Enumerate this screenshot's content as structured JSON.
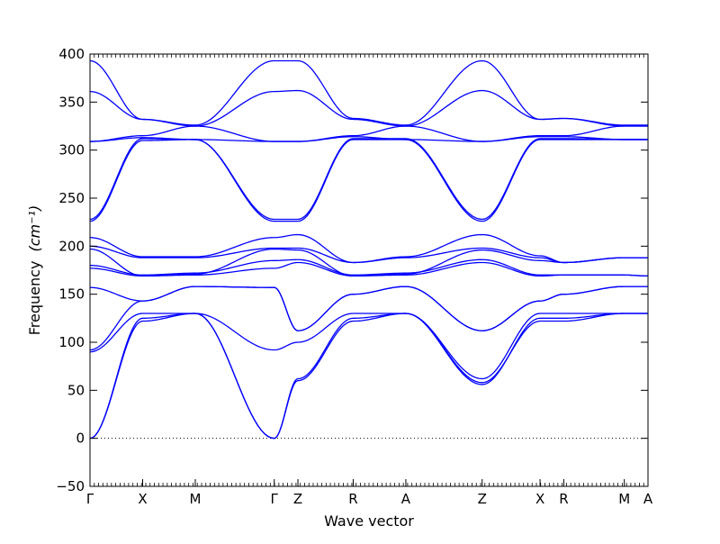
{
  "chart_data": {
    "type": "line",
    "title": "",
    "xlabel": "Wave vector",
    "ylabel": "Frequency",
    "ylabel_unit": "(cm⁻¹)",
    "ylim": [
      -50,
      400
    ],
    "yticks": [
      -50,
      0,
      50,
      100,
      150,
      200,
      250,
      300,
      350,
      400
    ],
    "xlim": [
      0,
      10.6
    ],
    "high_symmetry_points": [
      {
        "label": "Γ",
        "x": 0.0
      },
      {
        "label": "X",
        "x": 1.0
      },
      {
        "label": "M",
        "x": 2.0
      },
      {
        "label": "Γ",
        "x": 3.5
      },
      {
        "label": "Z",
        "x": 3.95
      },
      {
        "label": "R",
        "x": 5.0
      },
      {
        "label": "A",
        "x": 6.0
      },
      {
        "label": "Z",
        "x": 7.45
      },
      {
        "label": "X",
        "x": 8.55
      },
      {
        "label": "R",
        "x": 9.0
      },
      {
        "label": "M",
        "x": 10.15
      },
      {
        "label": "A",
        "x": 10.6
      }
    ],
    "zero_line": {
      "y": 0,
      "style": "dotted"
    },
    "line_color": "#0000ff",
    "grid": false,
    "band_x": [
      0,
      1,
      2,
      3.5,
      3.95,
      5,
      6,
      7.45,
      8.55,
      9,
      10.15,
      10.6
    ],
    "series": [
      {
        "values": [
          0,
          122,
          130,
          0,
          60,
          122,
          130,
          58,
          122,
          122,
          130,
          130
        ]
      },
      {
        "values": [
          0,
          125,
          130,
          0,
          62,
          125,
          130,
          56,
          125,
          125,
          130,
          130
        ]
      },
      {
        "values": [
          90,
          130,
          130,
          92,
          100,
          130,
          130,
          62,
          130,
          130,
          130,
          130
        ]
      },
      {
        "values": [
          92,
          143,
          158,
          157,
          112,
          150,
          158,
          112,
          143,
          150,
          158,
          158
        ]
      },
      {
        "values": [
          157,
          143,
          158,
          157,
          112,
          150,
          158,
          112,
          143,
          150,
          158,
          158
        ]
      },
      {
        "values": [
          177,
          169,
          170,
          177,
          183,
          169,
          170,
          183,
          169,
          170,
          170,
          169
        ]
      },
      {
        "values": [
          180,
          170,
          172,
          185,
          186,
          170,
          172,
          186,
          170,
          170,
          170,
          169
        ]
      },
      {
        "values": [
          197,
          169,
          171,
          197,
          196,
          169,
          171,
          196,
          185,
          183,
          188,
          188
        ]
      },
      {
        "values": [
          200,
          188,
          188,
          198,
          198,
          183,
          188,
          198,
          188,
          183,
          188,
          188
        ]
      },
      {
        "values": [
          209,
          189,
          189,
          209,
          212,
          183,
          189,
          212,
          190,
          183,
          188,
          188
        ]
      },
      {
        "values": [
          226,
          310,
          311,
          226,
          226,
          311,
          311,
          226,
          311,
          311,
          311,
          311
        ]
      },
      {
        "values": [
          228,
          312,
          311,
          228,
          228,
          312,
          312,
          228,
          312,
          312,
          311,
          311
        ]
      },
      {
        "values": [
          309,
          313,
          311,
          309,
          309,
          314,
          311,
          309,
          314,
          314,
          311,
          311
        ]
      },
      {
        "values": [
          309,
          315,
          325,
          309,
          309,
          315,
          325,
          309,
          315,
          315,
          325,
          325
        ]
      },
      {
        "values": [
          361,
          332,
          325,
          361,
          362,
          332,
          325,
          362,
          332,
          333,
          325,
          325
        ]
      },
      {
        "values": [
          393,
          332,
          326,
          393,
          393,
          333,
          326,
          393,
          332,
          333,
          326,
          326
        ]
      }
    ]
  }
}
